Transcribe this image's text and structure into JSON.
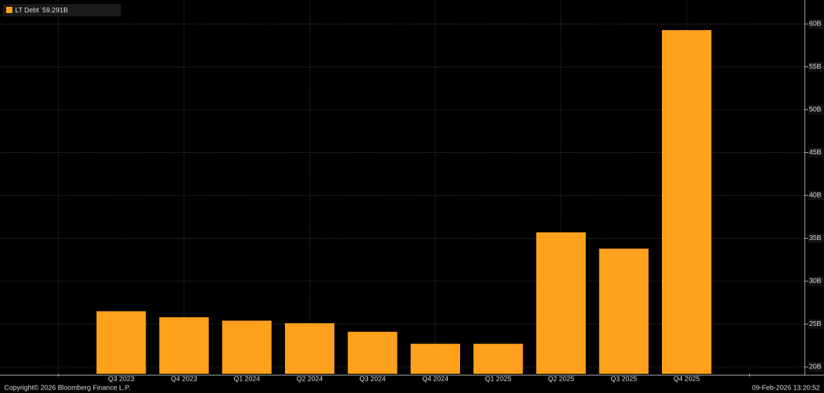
{
  "chart_data": {
    "type": "bar",
    "categories": [
      null,
      "Q3 2023",
      "Q4 2023",
      "Q1 2024",
      "Q2 2024",
      "Q3 2024",
      "Q4 2024",
      "Q1 2025",
      "Q2 2025",
      "Q3 2025",
      "Q4 2025",
      null
    ],
    "series": [
      {
        "name": "LT Debt",
        "color": "#ffa11a",
        "values": [
          null,
          26.5,
          25.8,
          25.4,
          25.1,
          24.1,
          22.7,
          22.7,
          35.7,
          33.8,
          59.291,
          null
        ]
      }
    ],
    "legend_value": "59.291B",
    "ylim": [
      19.2,
      62.8
    ],
    "yticks": [
      {
        "value": 20,
        "label": "20B"
      },
      {
        "value": 25,
        "label": "25B"
      },
      {
        "value": 30,
        "label": "30B"
      },
      {
        "value": 35,
        "label": "35B"
      },
      {
        "value": 40,
        "label": "40B"
      },
      {
        "value": 45,
        "label": "45B"
      },
      {
        "value": 50,
        "label": "50B"
      },
      {
        "value": 55,
        "label": "55B"
      },
      {
        "value": 60,
        "label": "60B"
      }
    ],
    "grid": true,
    "footer_left": "Copyright© 2026 Bloomberg Finance L.P.",
    "footer_right": "09-Feb-2026 13:20:52"
  }
}
